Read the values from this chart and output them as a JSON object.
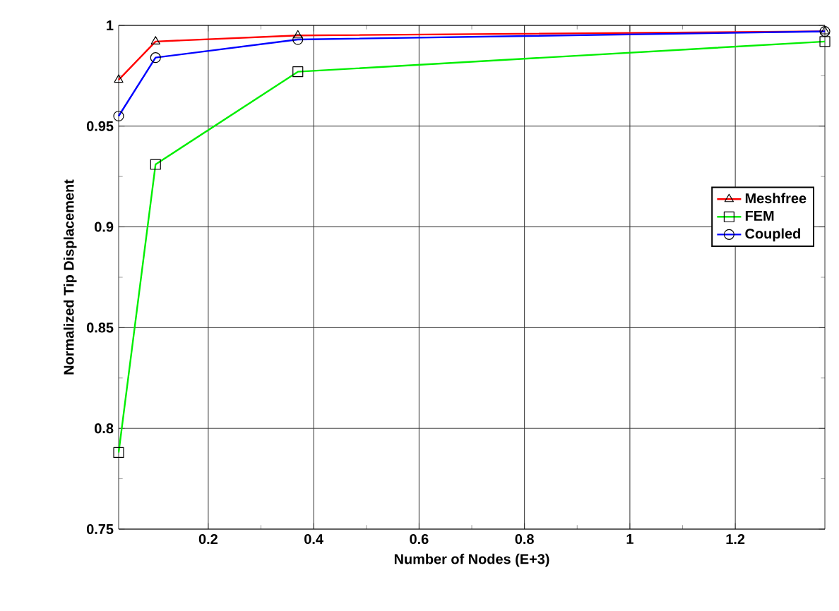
{
  "chart_data": {
    "type": "line",
    "xlabel": "Number of Nodes (E+3)",
    "ylabel": "Normalized Tip Displacement",
    "x": [
      0.03,
      0.1,
      0.37,
      1.37
    ],
    "series": [
      {
        "name": "Meshfree",
        "color": "#ff0000",
        "marker": "triangle",
        "values": [
          0.973,
          0.992,
          0.995,
          0.997
        ]
      },
      {
        "name": "FEM",
        "color": "#00ee00",
        "marker": "square",
        "values": [
          0.788,
          0.931,
          0.977,
          0.992
        ]
      },
      {
        "name": "Coupled",
        "color": "#0000ff",
        "marker": "circle",
        "values": [
          0.955,
          0.984,
          0.993,
          0.997
        ]
      }
    ],
    "xlim": [
      0.03,
      1.37
    ],
    "ylim": [
      0.75,
      1
    ],
    "xticks": [
      0.2,
      0.4,
      0.6,
      0.8,
      1,
      1.2
    ],
    "yticks": [
      0.75,
      0.8,
      0.85,
      0.9,
      0.95,
      1
    ],
    "grid": true,
    "legend": "right",
    "line_style": "solid"
  }
}
